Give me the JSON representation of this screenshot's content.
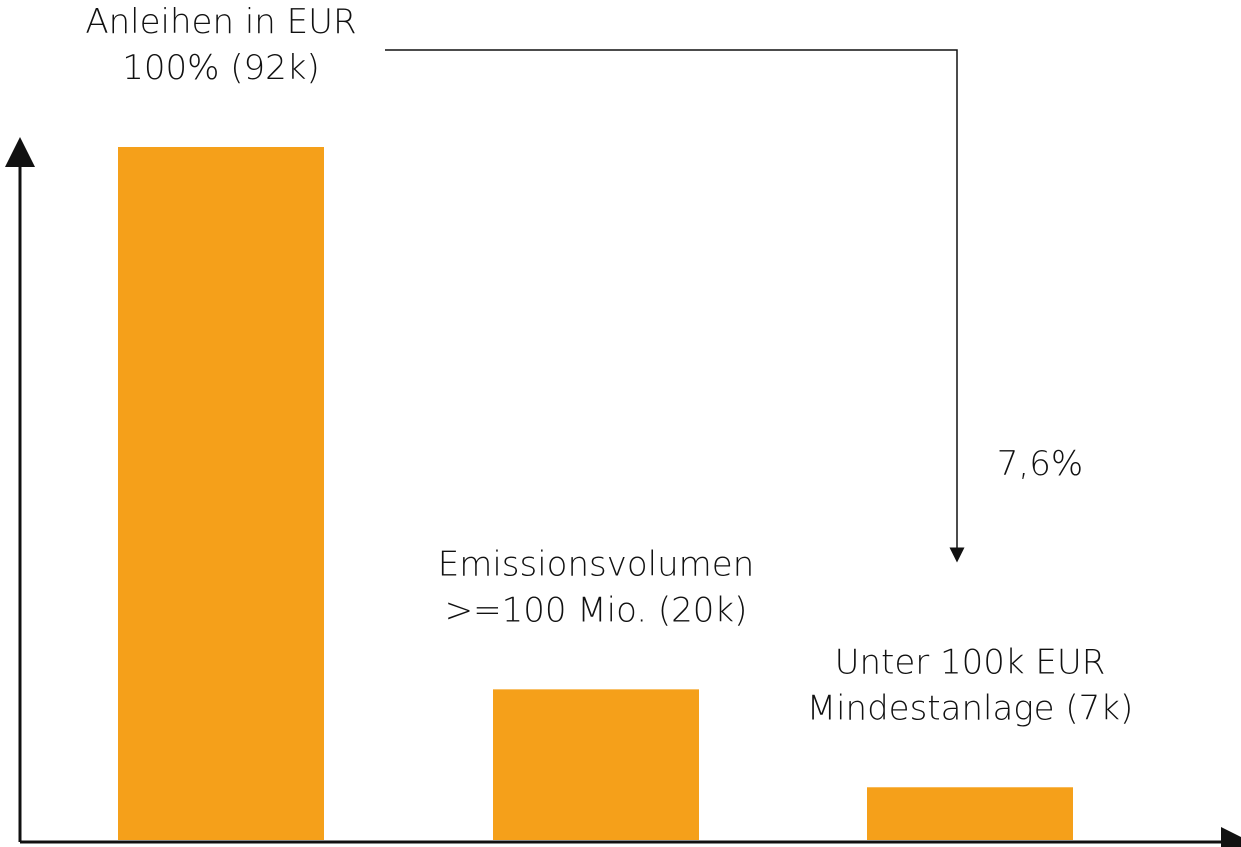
{
  "chart_data": {
    "type": "bar",
    "labels": [
      [
        "Anleihen in EUR",
        "100% (92k)"
      ],
      [
        "Emissionsvolumen",
        ">=100 Mio. (20k)"
      ],
      [
        "Unter 100k EUR",
        "Mindestanlage (7k)"
      ]
    ],
    "values": [
      92,
      20,
      7
    ],
    "color": "#f5a01a",
    "annotation": "7,6%"
  }
}
